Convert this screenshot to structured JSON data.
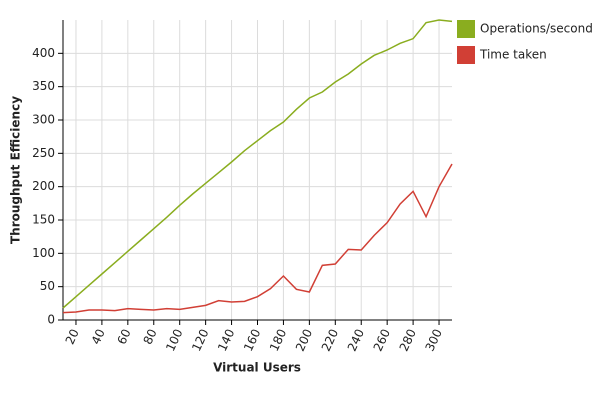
{
  "chart_data": {
    "type": "line",
    "x_label": "Virtual Users",
    "y_label": "Throughput Efficiency",
    "x": [
      10,
      20,
      30,
      40,
      50,
      60,
      70,
      80,
      90,
      100,
      110,
      120,
      130,
      140,
      150,
      160,
      170,
      180,
      190,
      200,
      210,
      220,
      230,
      240,
      250,
      260,
      270,
      280,
      290,
      300,
      310
    ],
    "series": [
      {
        "name": "Operations/second",
        "color": "#8aad1f",
        "values": [
          18,
          35,
          52,
          69,
          86,
          103,
          120,
          137,
          154,
          172,
          189,
          205,
          221,
          237,
          254,
          269,
          284,
          297,
          316,
          333,
          342,
          357,
          369,
          384,
          397,
          405,
          415,
          422,
          446,
          450,
          448
        ]
      },
      {
        "name": "Time taken",
        "color": "#d13f35",
        "values": [
          11,
          12,
          15,
          15,
          14,
          17,
          16,
          15,
          17,
          16,
          19,
          22,
          29,
          27,
          28,
          35,
          47,
          66,
          46,
          42,
          82,
          84,
          106,
          105,
          127,
          146,
          174,
          193,
          155,
          200,
          234
        ]
      }
    ],
    "xlim": [
      10,
      310
    ],
    "ylim": [
      0,
      450
    ],
    "xticks": [
      20,
      40,
      60,
      80,
      100,
      120,
      140,
      160,
      180,
      200,
      220,
      240,
      260,
      280,
      300
    ],
    "yticks": [
      0,
      50,
      100,
      150,
      200,
      250,
      300,
      350,
      400
    ],
    "grid": true,
    "legend": "right"
  }
}
